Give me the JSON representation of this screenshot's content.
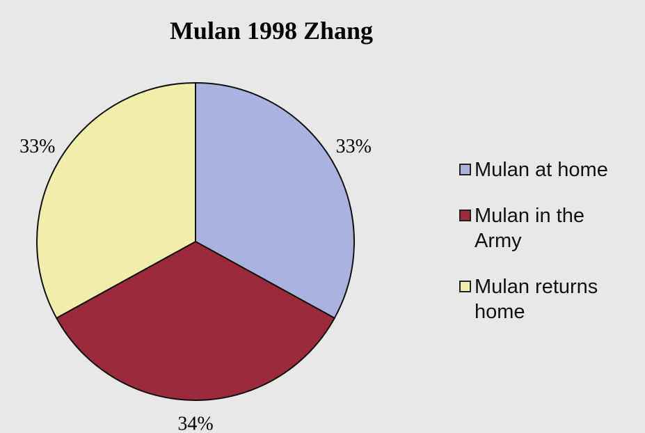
{
  "chart_data": {
    "type": "pie",
    "title": "Mulan 1998 Zhang",
    "categories": [
      "Mulan at home",
      "Mulan in the Army",
      "Mulan returns home"
    ],
    "values": [
      33,
      34,
      33
    ],
    "value_labels": [
      "33%",
      "34%",
      "33%"
    ],
    "colors": [
      "#aab2e0",
      "#9c2a3a",
      "#f1eeab"
    ],
    "legend": "right"
  }
}
